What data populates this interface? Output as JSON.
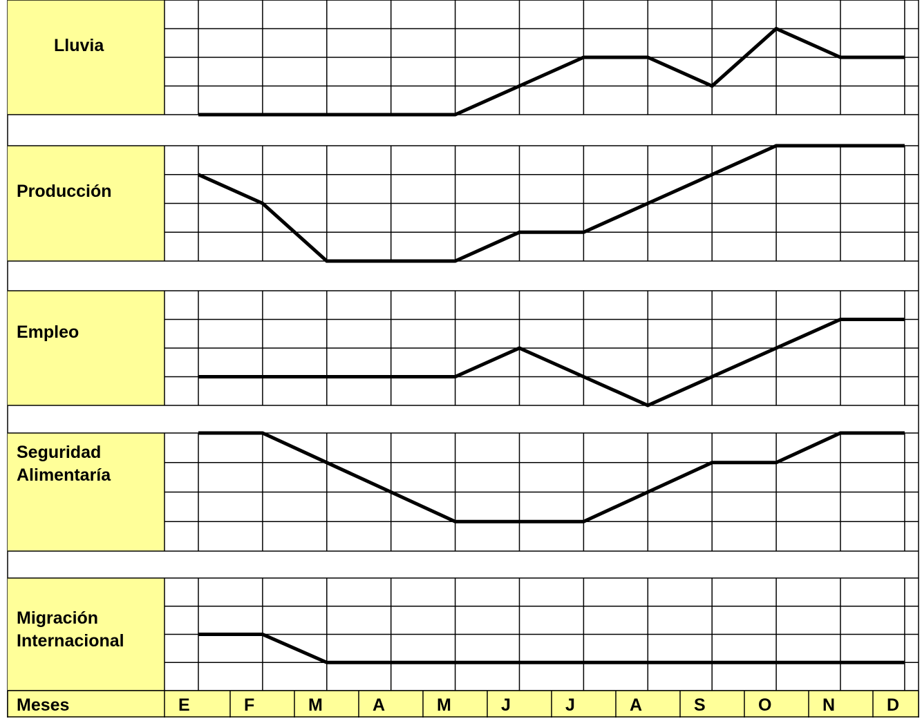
{
  "colors": {
    "label_fill": "#ffff99",
    "grid": "#000000",
    "series_line": "#000000",
    "background": "#ffffff"
  },
  "footer": {
    "label": "Meses"
  },
  "chart_data": {
    "type": "line",
    "x_label_title": "Meses",
    "categories": [
      "E",
      "F",
      "M",
      "A",
      "M",
      "J",
      "J",
      "A",
      "S",
      "O",
      "N",
      "D"
    ],
    "y_levels": 4,
    "grid": true,
    "legend": "none",
    "panels": [
      {
        "name": "Lluvia",
        "lines": [
          "Lluvia"
        ],
        "values": [
          0,
          0,
          0,
          0,
          0,
          1,
          2,
          2,
          1,
          3,
          2,
          2
        ]
      },
      {
        "name": "Producción",
        "lines": [
          "Producción"
        ],
        "values": [
          3,
          2,
          0,
          0,
          0,
          1,
          1,
          2,
          3,
          4,
          4,
          4
        ]
      },
      {
        "name": "Empleo",
        "lines": [
          "Empleo"
        ],
        "values": [
          1,
          1,
          1,
          1,
          1,
          2,
          1,
          0,
          1,
          2,
          3,
          3
        ]
      },
      {
        "name": "Seguridad Alimentaría",
        "lines": [
          "Seguridad",
          "Alimentaría"
        ],
        "values": [
          4,
          4,
          3,
          2,
          1,
          1,
          1,
          2,
          3,
          3,
          4,
          4
        ]
      },
      {
        "name": "Migración Internacional",
        "lines": [
          "Migración",
          "Internacional"
        ],
        "values": [
          2,
          2,
          1,
          1,
          1,
          1,
          1,
          1,
          1,
          1,
          1,
          1
        ]
      }
    ]
  }
}
